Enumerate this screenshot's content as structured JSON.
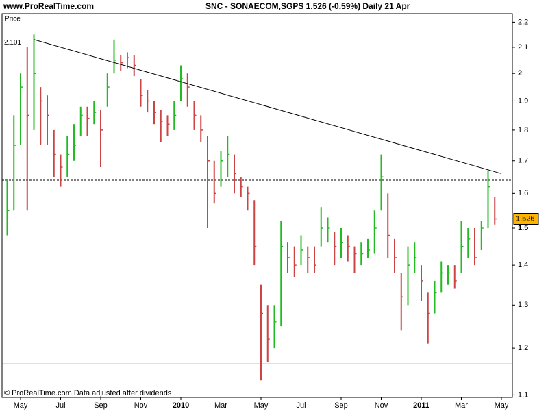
{
  "chart_data": {
    "type": "bar-ohlc",
    "site": "www.ProRealTime.com",
    "title": "SNC - SONAECOM,SGPS    1.526 (-0.59%)    Daily  21 Apr",
    "y_label": "Price",
    "footer": "© ProRealTime.com  Data adjusted after dividends",
    "log_scale": true,
    "ylim": [
      1.095,
      2.235
    ],
    "yticks": [
      2.2,
      2.1,
      2,
      1.9,
      1.8,
      1.7,
      1.6,
      1.5,
      1.4,
      1.3,
      1.2,
      1.1
    ],
    "bold_yticks": [
      2,
      1.5
    ],
    "categories": [
      null,
      null,
      "May",
      null,
      null,
      null,
      null,
      null,
      "Jul",
      null,
      null,
      null,
      null,
      null,
      "Sep",
      null,
      null,
      null,
      null,
      null,
      "Nov",
      null,
      null,
      null,
      null,
      null,
      "2010",
      null,
      null,
      null,
      null,
      null,
      "Mar",
      null,
      null,
      null,
      null,
      null,
      "May",
      null,
      null,
      null,
      null,
      null,
      "Jul",
      null,
      null,
      null,
      null,
      null,
      "Sep",
      null,
      null,
      null,
      null,
      null,
      "Nov",
      null,
      null,
      null,
      null,
      null,
      "2011",
      null,
      null,
      null,
      null,
      null,
      "Mar",
      null,
      null,
      null,
      null,
      null,
      "May"
    ],
    "bold_categories": [
      "2010",
      "2011"
    ],
    "high": [
      1.64,
      1.85,
      2.0,
      2.1,
      2.15,
      1.95,
      1.92,
      1.8,
      1.72,
      1.78,
      1.82,
      1.88,
      1.88,
      1.9,
      1.87,
      2.0,
      2.13,
      2.07,
      2.08,
      2.07,
      1.98,
      1.94,
      1.9,
      1.87,
      1.85,
      1.9,
      2.03,
      2.0,
      1.9,
      1.85,
      1.78,
      1.7,
      1.73,
      1.78,
      1.72,
      1.65,
      1.62,
      1.58,
      1.35,
      1.3,
      1.3,
      1.52,
      1.46,
      1.45,
      1.48,
      1.45,
      1.45,
      1.56,
      1.53,
      1.49,
      1.5,
      1.48,
      1.45,
      1.46,
      1.47,
      1.55,
      1.72,
      1.6,
      1.47,
      1.38,
      1.45,
      1.46,
      1.4,
      1.33,
      1.36,
      1.41,
      1.4,
      1.4,
      1.52,
      1.5,
      1.5,
      1.52,
      1.67,
      1.59,
      null
    ],
    "low": [
      1.48,
      1.55,
      1.75,
      1.55,
      1.8,
      1.75,
      1.75,
      1.65,
      1.62,
      1.65,
      1.7,
      1.78,
      1.78,
      1.82,
      1.68,
      1.88,
      2.0,
      2.01,
      2.02,
      1.99,
      1.88,
      1.86,
      1.82,
      1.76,
      1.78,
      1.8,
      1.9,
      1.88,
      1.8,
      1.76,
      1.5,
      1.57,
      1.62,
      1.65,
      1.6,
      1.59,
      1.55,
      1.4,
      1.13,
      1.17,
      1.2,
      1.25,
      1.38,
      1.37,
      1.4,
      1.38,
      1.38,
      1.45,
      1.46,
      1.4,
      1.42,
      1.41,
      1.38,
      1.4,
      1.42,
      1.43,
      1.55,
      1.42,
      1.38,
      1.24,
      1.3,
      1.38,
      1.31,
      1.21,
      1.28,
      1.33,
      1.35,
      1.34,
      1.38,
      1.42,
      1.4,
      1.44,
      1.5,
      1.51,
      null
    ],
    "close": [
      1.55,
      1.75,
      1.95,
      1.85,
      2.0,
      1.9,
      1.85,
      1.72,
      1.68,
      1.72,
      1.75,
      1.85,
      1.84,
      1.86,
      1.8,
      1.95,
      2.05,
      2.04,
      2.06,
      2.03,
      1.92,
      1.9,
      1.86,
      1.83,
      1.82,
      1.85,
      1.98,
      1.95,
      1.85,
      1.8,
      1.7,
      1.6,
      1.7,
      1.72,
      1.66,
      1.62,
      1.6,
      1.45,
      1.28,
      1.22,
      1.26,
      1.45,
      1.42,
      1.4,
      1.44,
      1.42,
      1.4,
      1.5,
      1.5,
      1.45,
      1.46,
      1.45,
      1.43,
      1.43,
      1.44,
      1.5,
      1.65,
      1.48,
      1.42,
      1.32,
      1.4,
      1.42,
      1.36,
      1.28,
      1.33,
      1.38,
      1.38,
      1.36,
      1.45,
      1.47,
      1.42,
      1.5,
      1.62,
      1.526,
      null
    ],
    "up_color": "#22bb22",
    "down_color": "#cc4444",
    "levels": [
      {
        "value": 2.101,
        "label": "2.101",
        "style": "solid"
      },
      {
        "value": 1.64,
        "style": "dashed"
      },
      {
        "value": 1.165,
        "style": "solid"
      }
    ],
    "trendline": {
      "start": 2.13,
      "end": 1.66
    },
    "last_price_color": "#ffb400"
  }
}
